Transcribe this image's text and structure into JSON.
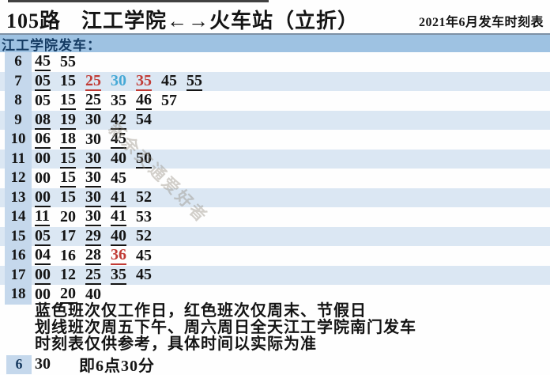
{
  "header": {
    "route": "105路",
    "title": "江工学院←→火车站（立折）",
    "subtitle": "2021年6月发车时刻表"
  },
  "colors": {
    "band_blue": "#9ec2e2",
    "hour_column_blue": "#c5d8ec",
    "row_stripe_blue": "#dbe7f3",
    "weekday_minute_blue": "#46a9d6",
    "weekend_minute_red": "#c13b35",
    "band_text_navy": "#143b63"
  },
  "table": {
    "section_label": "江工学院发车：",
    "rows": [
      {
        "hour": "6",
        "minutes": [
          {
            "v": "45",
            "u": true
          },
          {
            "v": "55"
          }
        ]
      },
      {
        "hour": "7",
        "minutes": [
          {
            "v": "05",
            "u": true
          },
          {
            "v": "15"
          },
          {
            "v": "25",
            "u": true,
            "c": "red"
          },
          {
            "v": "30",
            "c": "blue"
          },
          {
            "v": "35",
            "u": true,
            "c": "red"
          },
          {
            "v": "45"
          },
          {
            "v": "55",
            "u": true
          }
        ]
      },
      {
        "hour": "8",
        "minutes": [
          {
            "v": "05"
          },
          {
            "v": "15",
            "u": true
          },
          {
            "v": "25",
            "u": true
          },
          {
            "v": "35"
          },
          {
            "v": "46",
            "u": true
          },
          {
            "v": "57"
          }
        ]
      },
      {
        "hour": "9",
        "minutes": [
          {
            "v": "08",
            "u": true
          },
          {
            "v": "19",
            "u": true
          },
          {
            "v": "30"
          },
          {
            "v": "42",
            "u": true
          },
          {
            "v": "54"
          }
        ]
      },
      {
        "hour": "10",
        "minutes": [
          {
            "v": "06",
            "u": true
          },
          {
            "v": "18",
            "u": true
          },
          {
            "v": "30"
          },
          {
            "v": "45",
            "u": true
          }
        ]
      },
      {
        "hour": "11",
        "minutes": [
          {
            "v": "00"
          },
          {
            "v": "15",
            "u": true
          },
          {
            "v": "30",
            "u": true
          },
          {
            "v": "40"
          },
          {
            "v": "50",
            "u": true
          }
        ]
      },
      {
        "hour": "12",
        "minutes": [
          {
            "v": "00"
          },
          {
            "v": "15",
            "u": true
          },
          {
            "v": "30",
            "u": true
          },
          {
            "v": "45"
          }
        ]
      },
      {
        "hour": "13",
        "minutes": [
          {
            "v": "00",
            "u": true
          },
          {
            "v": "15"
          },
          {
            "v": "30",
            "u": true
          },
          {
            "v": "41",
            "u": true
          },
          {
            "v": "52"
          }
        ]
      },
      {
        "hour": "14",
        "minutes": [
          {
            "v": "11",
            "u": true
          },
          {
            "v": "20"
          },
          {
            "v": "30",
            "u": true
          },
          {
            "v": "41",
            "u": true
          },
          {
            "v": "53"
          }
        ]
      },
      {
        "hour": "15",
        "minutes": [
          {
            "v": "05",
            "u": true
          },
          {
            "v": "17"
          },
          {
            "v": "29",
            "u": true
          },
          {
            "v": "40",
            "u": true
          },
          {
            "v": "52"
          }
        ]
      },
      {
        "hour": "16",
        "minutes": [
          {
            "v": "04",
            "u": true
          },
          {
            "v": "16"
          },
          {
            "v": "28",
            "u": true
          },
          {
            "v": "36",
            "u": true,
            "c": "red"
          },
          {
            "v": "45"
          }
        ]
      },
      {
        "hour": "17",
        "minutes": [
          {
            "v": "00",
            "u": true
          },
          {
            "v": "12"
          },
          {
            "v": "25",
            "u": true
          },
          {
            "v": "35",
            "u": true
          },
          {
            "v": "45"
          }
        ]
      },
      {
        "hour": "18",
        "minutes": [
          {
            "v": "00"
          },
          {
            "v": "20",
            "u": true
          },
          {
            "v": "40"
          }
        ]
      }
    ]
  },
  "notes": [
    "蓝色班次仅工作日，红色班次仅周末、节假日",
    "划线班次周五下午、周六周日全天江工学院南门发车",
    "时刻表仅供参考，具体时间以实际为准"
  ],
  "legend": {
    "hour": "6",
    "minute": "30",
    "label": "即6点30分"
  },
  "watermark": "新余交通爱好者"
}
